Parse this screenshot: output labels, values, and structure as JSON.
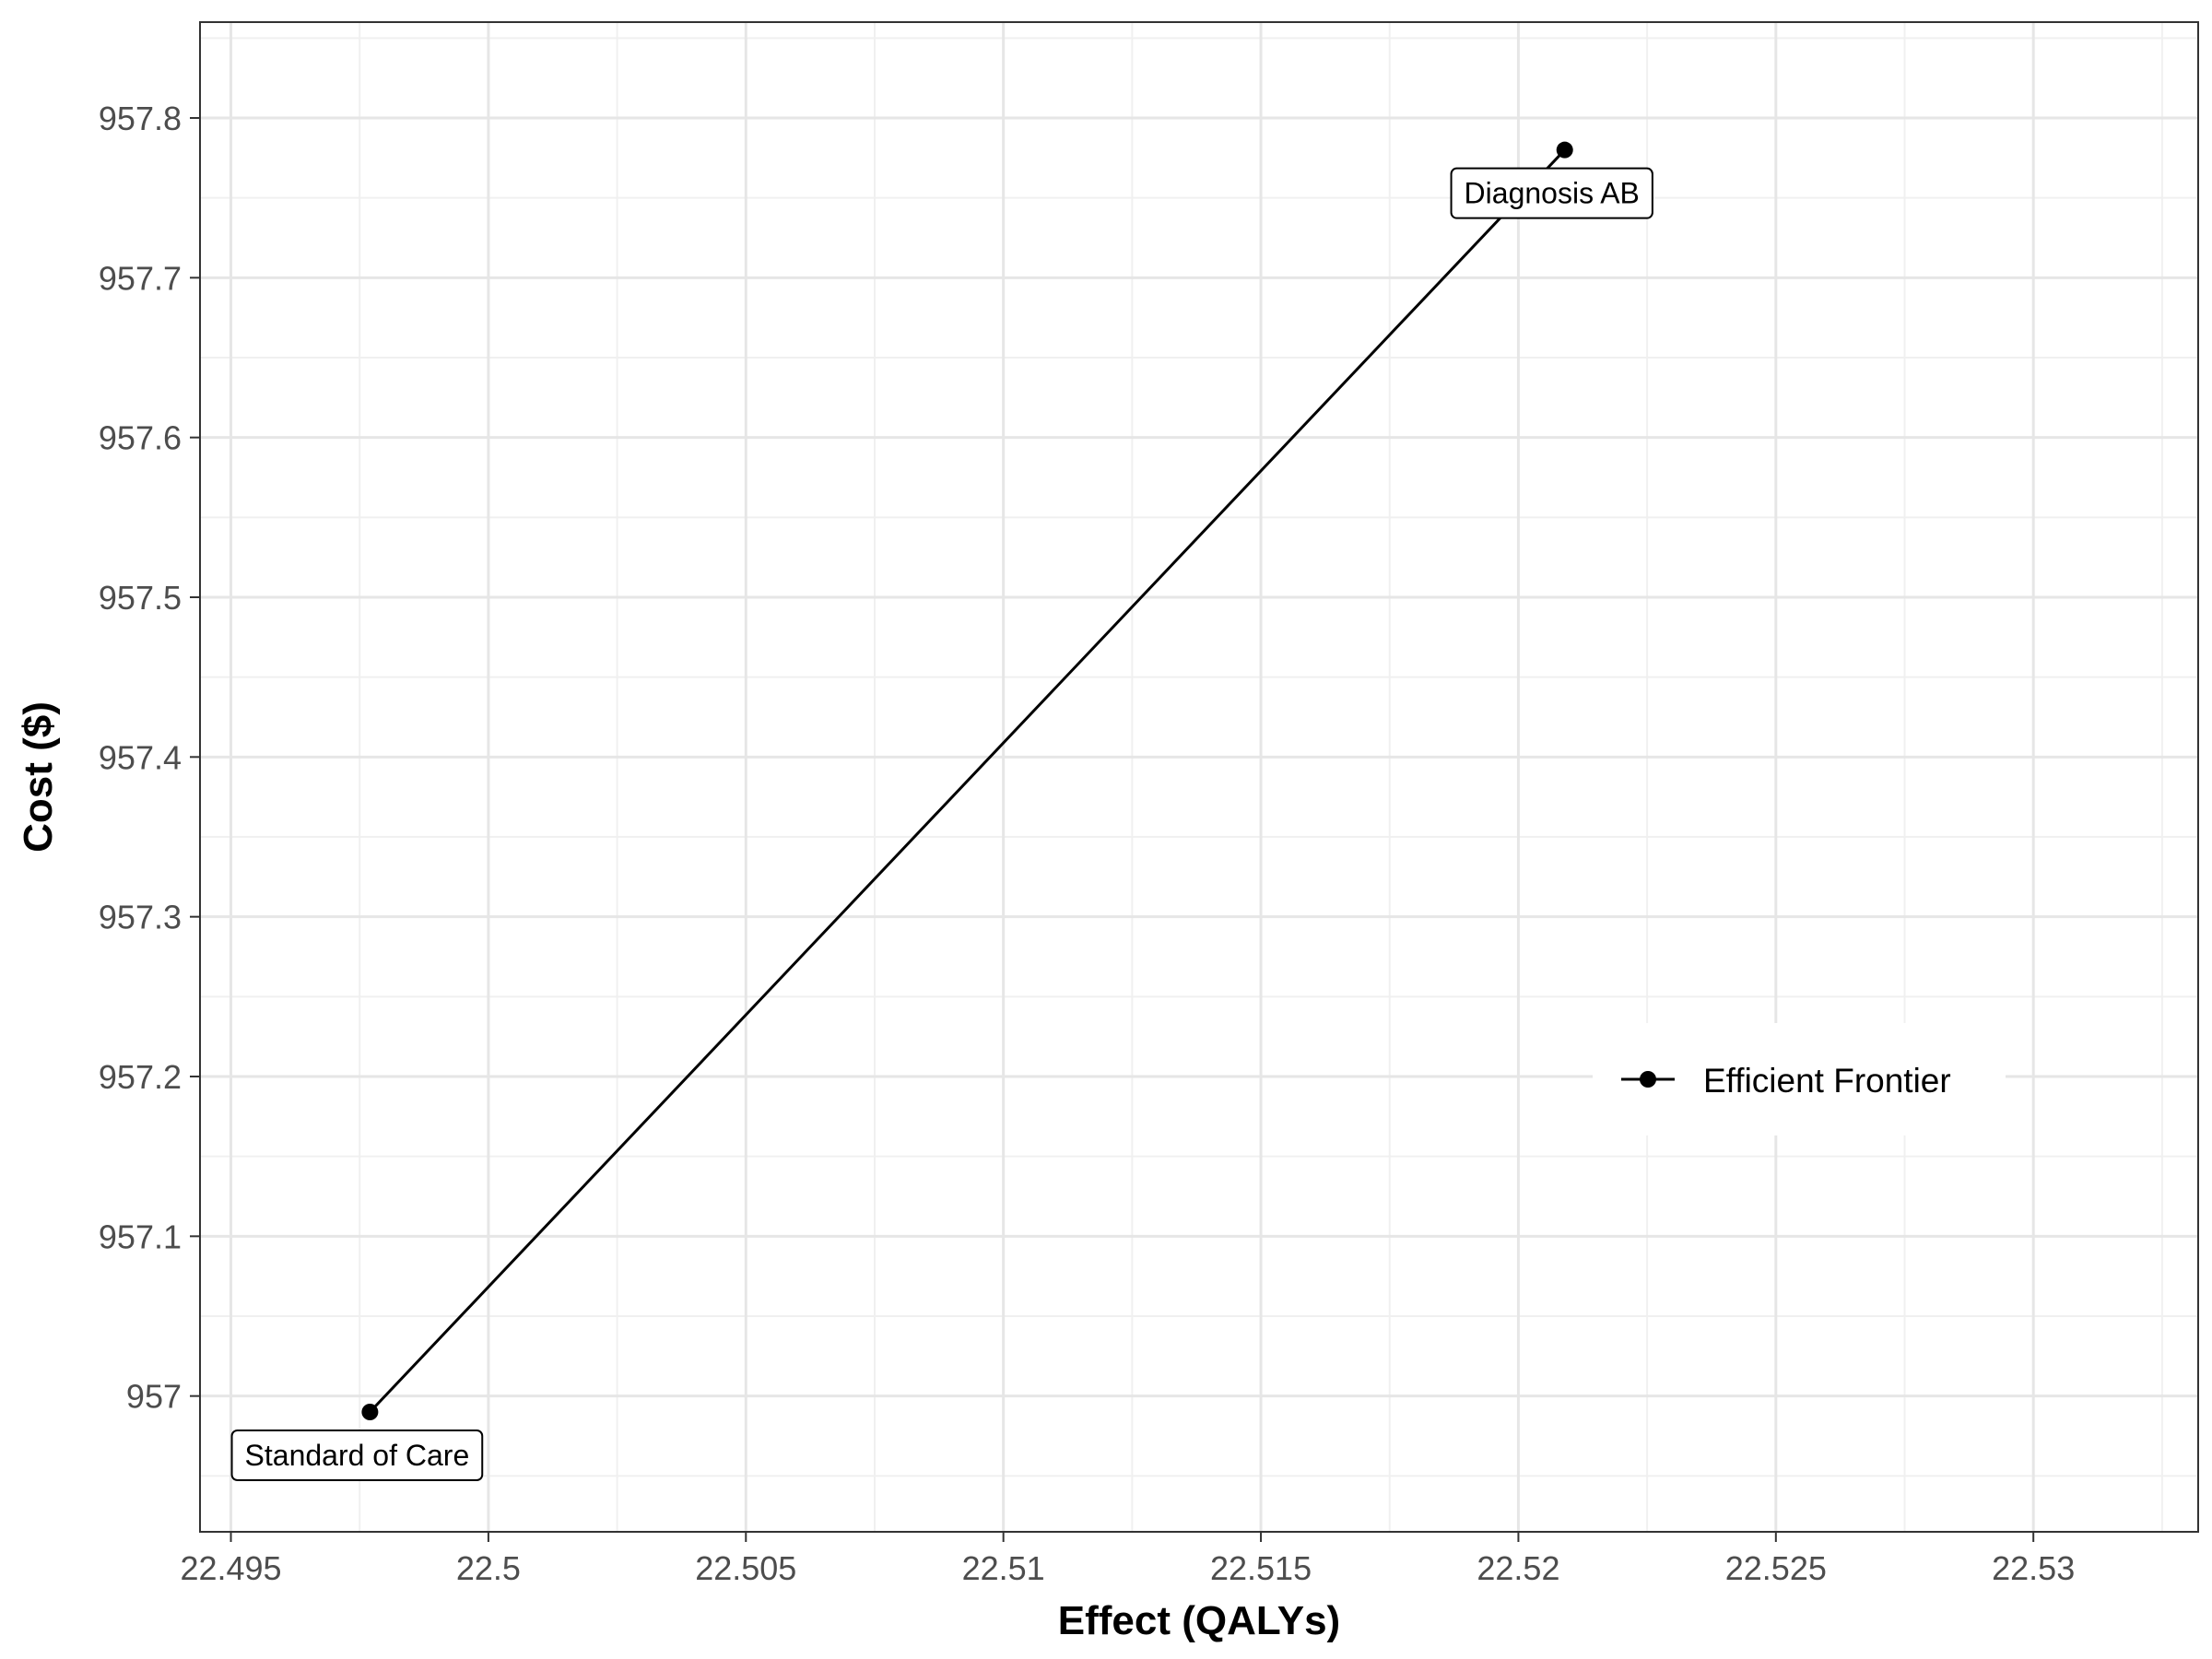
{
  "chart_data": {
    "type": "line",
    "title": "",
    "xlabel": "Effect (QALYs)",
    "ylabel": "Cost ($)",
    "xlim": [
      22.4944,
      22.5332
    ],
    "ylim": [
      956.915,
      957.86
    ],
    "x_ticks": [
      22.495,
      22.5,
      22.505,
      22.51,
      22.515,
      22.52,
      22.525,
      22.53
    ],
    "x_tick_labels": [
      "22.495",
      "22.5",
      "22.505",
      "22.51",
      "22.515",
      "22.52",
      "22.525",
      "22.53"
    ],
    "y_ticks": [
      957.0,
      957.1,
      957.2,
      957.3,
      957.4,
      957.5,
      957.6,
      957.7,
      957.8
    ],
    "y_tick_labels": [
      "957",
      "957.1",
      "957.2",
      "957.3",
      "957.4",
      "957.5",
      "957.6",
      "957.7",
      "957.8"
    ],
    "grid": true,
    "legend_position": "right",
    "series": [
      {
        "name": "Efficient Frontier",
        "color": "#000000",
        "points": [
          {
            "x": 22.4977,
            "y": 956.99,
            "label": "Standard of Care"
          },
          {
            "x": 22.5209,
            "y": 957.78,
            "label": "Diagnosis AB"
          }
        ]
      }
    ]
  }
}
